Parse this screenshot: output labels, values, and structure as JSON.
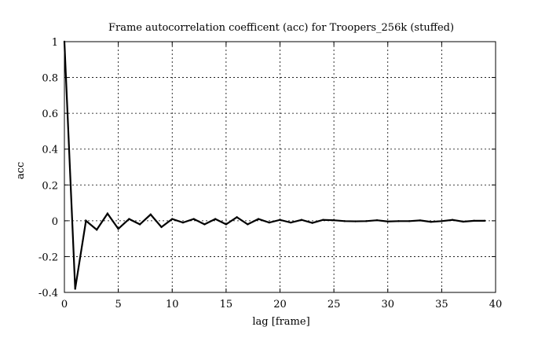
{
  "chart_data": {
    "type": "line",
    "title": "Frame autocorrelation coefficent (acc) for Troopers_256k (stuffed)",
    "xlabel": "lag [frame]",
    "ylabel": "acc",
    "xlim": [
      0,
      40
    ],
    "ylim": [
      -0.4,
      1
    ],
    "xticks": [
      0,
      5,
      10,
      15,
      20,
      25,
      30,
      35,
      40
    ],
    "yticks": [
      -0.4,
      -0.2,
      0,
      0.2,
      0.4,
      0.6,
      0.8,
      1
    ],
    "xtick_labels": [
      "0",
      "5",
      "10",
      "15",
      "20",
      "25",
      "30",
      "35",
      "40"
    ],
    "ytick_labels": [
      "-0.4",
      "-0.2",
      "0",
      "0.2",
      "0.4",
      "0.6",
      "0.8",
      "1"
    ],
    "grid": true,
    "legend": "none",
    "series": [
      {
        "x": [
          0,
          1,
          2,
          3,
          4,
          5,
          6,
          7,
          8,
          9,
          10,
          11,
          12,
          13,
          14,
          15,
          16,
          17,
          18,
          19,
          20,
          21,
          22,
          23,
          24,
          25,
          26,
          27,
          28,
          29,
          30,
          31,
          32,
          33,
          34,
          35,
          36,
          37,
          38,
          39
        ],
        "values": [
          1.0,
          -0.38,
          0.0,
          -0.05,
          0.04,
          -0.045,
          0.01,
          -0.02,
          0.035,
          -0.035,
          0.01,
          -0.01,
          0.01,
          -0.02,
          0.01,
          -0.02,
          0.02,
          -0.02,
          0.01,
          -0.01,
          0.005,
          -0.01,
          0.005,
          -0.012,
          0.005,
          0.003,
          -0.002,
          -0.003,
          -0.002,
          0.003,
          -0.004,
          -0.002,
          -0.002,
          0.002,
          -0.006,
          -0.002,
          0.005,
          -0.005,
          0.0,
          0.0
        ]
      }
    ]
  }
}
